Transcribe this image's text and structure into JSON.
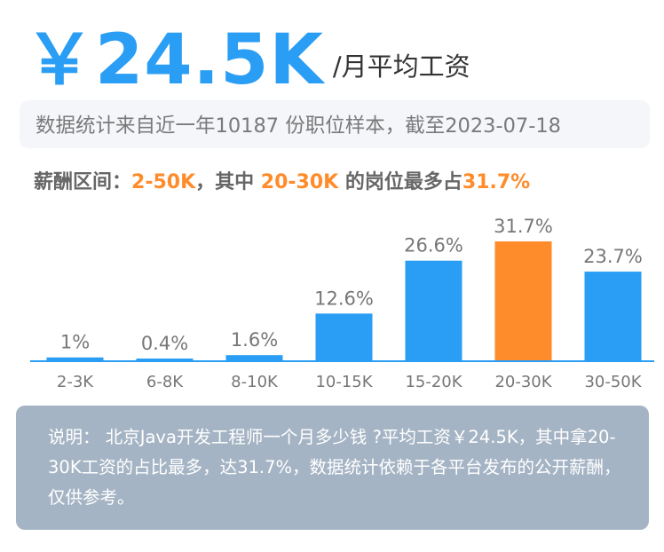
{
  "header": {
    "salary": "￥24.5K",
    "unit": "/月平均工资"
  },
  "stat": {
    "text": "数据统计来自近一年10187 份职位样本，截至2023-07-18"
  },
  "range": {
    "prefix": "薪酬区间：",
    "range": "2-50K",
    "middle": "，其中 ",
    "top_bucket": "20-30K",
    "suffix": " 的岗位最多占",
    "top_share": "31.7%"
  },
  "colors": {
    "accent": "#2a9df4",
    "highlight": "#ff8c2b",
    "note_bg": "#a5b4c4"
  },
  "chart_data": {
    "type": "bar",
    "categories": [
      "2-3K",
      "6-8K",
      "8-10K",
      "10-15K",
      "15-20K",
      "20-30K",
      "30-50K"
    ],
    "values": [
      1,
      0.4,
      1.6,
      12.6,
      26.6,
      31.7,
      23.7
    ],
    "value_labels": [
      "1%",
      "0.4%",
      "1.6%",
      "12.6%",
      "26.6%",
      "31.7%",
      "23.7%"
    ],
    "highlight_index": 5,
    "ylim": [
      0,
      31.7
    ],
    "grid": false,
    "legend": "none"
  },
  "note": {
    "text": "说明： 北京Java开发工程师一个月多少钱 ?平均工资￥24.5K，其中拿20-30K工资的占比最多，达31.7%，数据统计依赖于各平台发布的公开薪酬，仅供参考。"
  }
}
